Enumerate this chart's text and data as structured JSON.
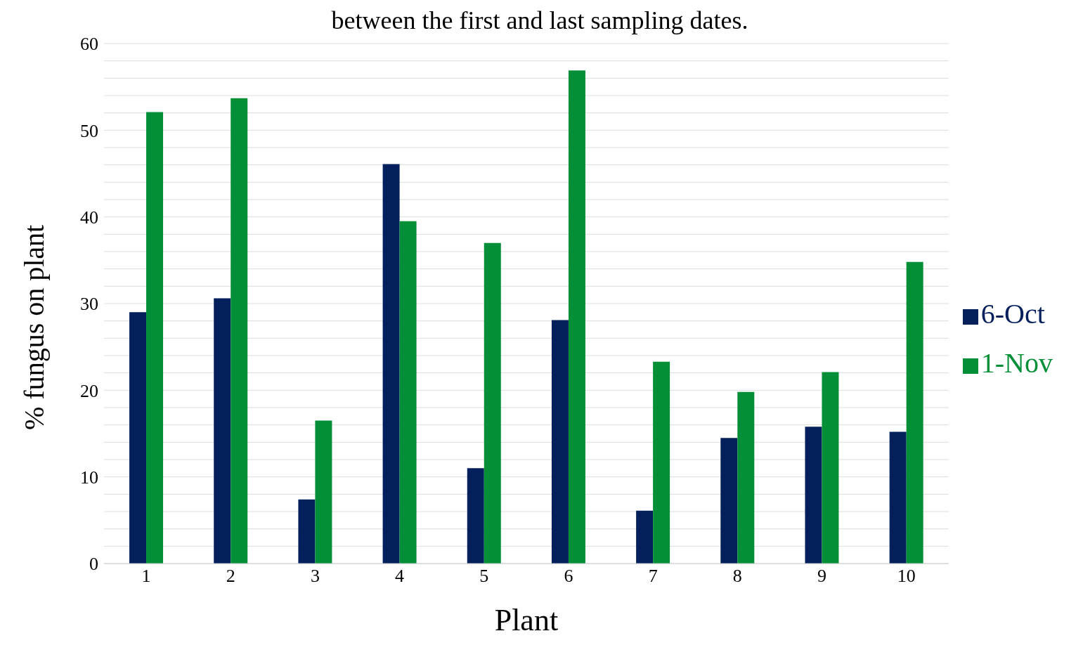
{
  "chart_data": {
    "type": "bar",
    "title": "between the first and last sampling dates.",
    "xlabel": "Plant",
    "ylabel": "% fungus on plant",
    "categories": [
      "1",
      "2",
      "3",
      "4",
      "5",
      "6",
      "7",
      "8",
      "9",
      "10"
    ],
    "series": [
      {
        "name": "6-Oct",
        "color": "#031f5c",
        "values": [
          29.0,
          30.6,
          7.4,
          46.1,
          11.0,
          28.1,
          6.1,
          14.5,
          15.8,
          15.2
        ]
      },
      {
        "name": "1-Nov",
        "color": "#038f37",
        "values": [
          52.1,
          53.7,
          16.5,
          39.5,
          37.0,
          56.9,
          23.3,
          19.8,
          22.1,
          34.8
        ]
      }
    ],
    "ylim": [
      0,
      60
    ],
    "yticks": [
      0,
      {
        "value": 2,
        "label": null
      },
      {
        "value": 4,
        "label": null
      },
      {
        "value": 6,
        "label": null
      },
      {
        "value": 8,
        "label": null
      },
      10,
      {
        "value": 12,
        "label": null
      },
      {
        "value": 14,
        "label": null
      },
      {
        "value": 16,
        "label": null
      },
      {
        "value": 18,
        "label": null
      },
      20,
      {
        "value": 22,
        "label": null
      },
      {
        "value": 24,
        "label": null
      },
      {
        "value": 26,
        "label": null
      },
      {
        "value": 28,
        "label": null
      },
      30,
      {
        "value": 32,
        "label": null
      },
      {
        "value": 34,
        "label": null
      },
      {
        "value": 36,
        "label": null
      },
      {
        "value": 38,
        "label": null
      },
      40,
      {
        "value": 42,
        "label": null
      },
      {
        "value": 44,
        "label": null
      },
      {
        "value": 46,
        "label": null
      },
      {
        "value": 48,
        "label": null
      },
      50,
      {
        "value": 52,
        "label": null
      },
      {
        "value": 54,
        "label": null
      },
      {
        "value": 56,
        "label": null
      },
      {
        "value": 58,
        "label": null
      },
      60
    ],
    "grid": "y",
    "legend": "right"
  }
}
